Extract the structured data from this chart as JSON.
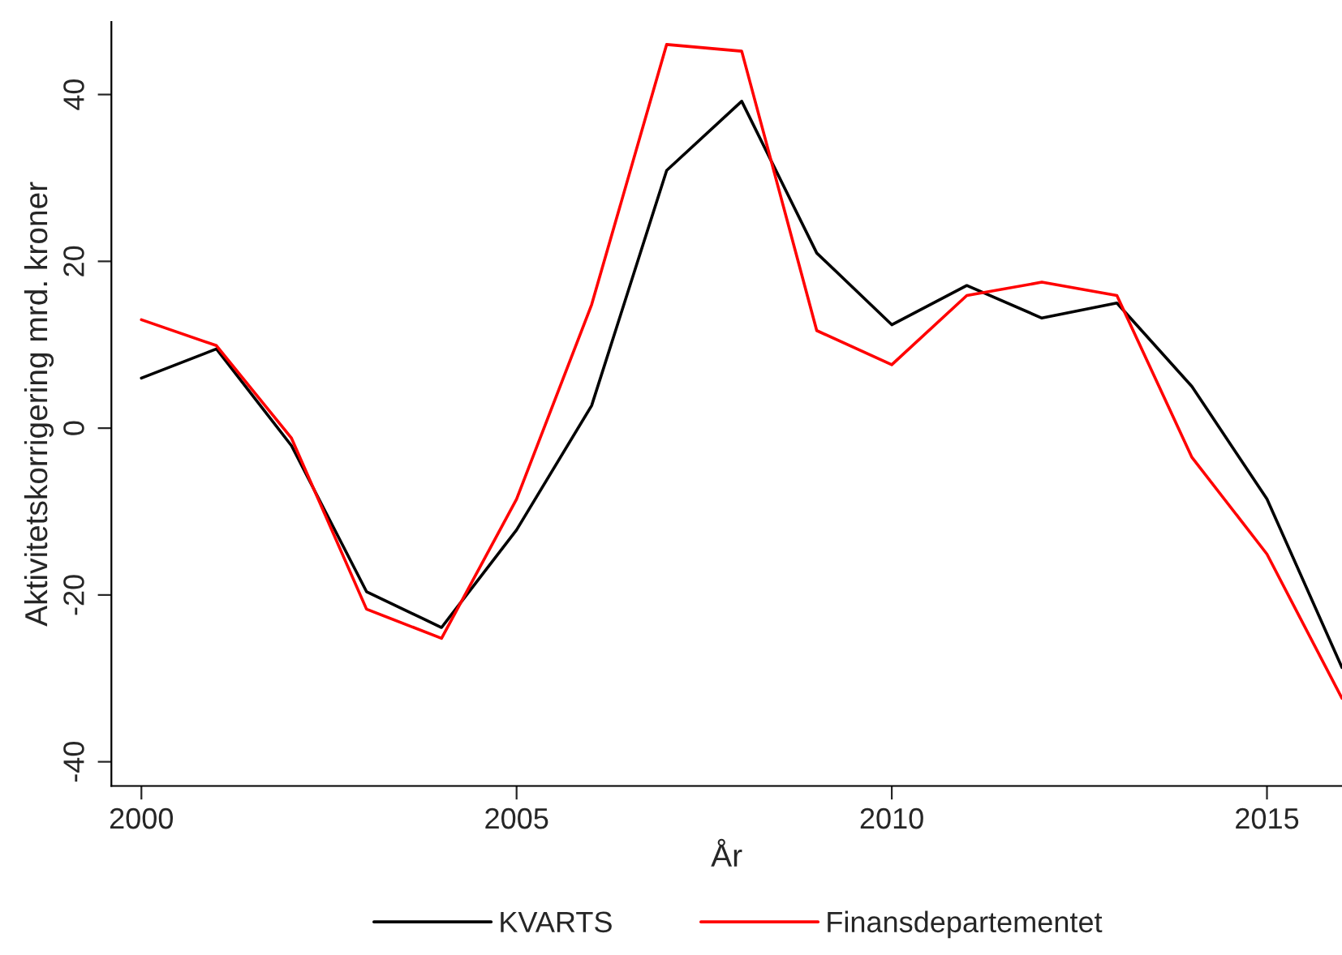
{
  "chart_data": {
    "type": "line",
    "xlabel": "År",
    "ylabel": "Aktivitetskorrigering mrd. kroner",
    "x": [
      2000,
      2001,
      2002,
      2003,
      2004,
      2005,
      2006,
      2007,
      2008,
      2009,
      2010,
      2011,
      2012,
      2013,
      2014,
      2015,
      2016
    ],
    "series": [
      {
        "name": "KVARTS",
        "color": "#000000",
        "values": [
          6.0,
          9.5,
          -2.1,
          -19.6,
          -23.9,
          -12.2,
          2.7,
          30.9,
          39.2,
          21.0,
          12.4,
          17.1,
          13.2,
          15.0,
          5.0,
          -8.5,
          -28.7
        ]
      },
      {
        "name": "Finansdepartementet",
        "color": "#ff0000",
        "values": [
          13.0,
          9.9,
          -1.2,
          -21.7,
          -25.2,
          -8.5,
          14.8,
          46.0,
          45.2,
          11.7,
          7.6,
          15.9,
          17.5,
          15.9,
          -3.5,
          -15.1,
          -32.4
        ]
      }
    ],
    "xlim": [
      1999.6,
      2016
    ],
    "ylim": [
      -42.9,
      48.7
    ],
    "xticks": [
      2000,
      2005,
      2010,
      2015
    ],
    "yticks": [
      -40,
      -20,
      0,
      20,
      40
    ],
    "grid": false,
    "legend": "bottom",
    "marker": "none",
    "line_style": "solid"
  }
}
